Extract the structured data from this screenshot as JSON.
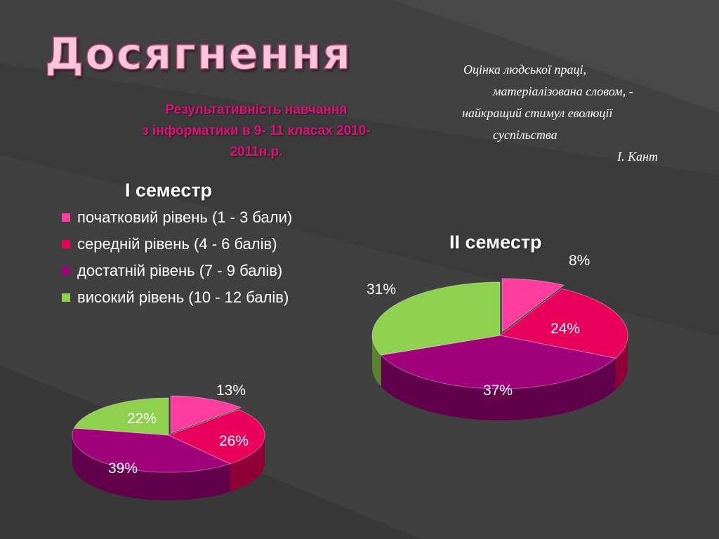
{
  "slide": {
    "title": "Досягнення",
    "subtitle_lines": [
      "Результативність навчання",
      "з інформатики в 9- 11 класах 2010-",
      "2011н.р."
    ]
  },
  "quote": {
    "lines": [
      "Оцінка людської праці,",
      "матеріалізована словом, -",
      "найкращий стимул еволюції",
      "суспільства",
      "І. Кант"
    ]
  },
  "colors": {
    "initial": "#ff3d9e",
    "middle": "#e8005a",
    "sufficient": "#a0007a",
    "high": "#8fd14f",
    "background": "#3a3a3a",
    "subtitle": "#e0107a"
  },
  "chart_data": [
    {
      "type": "pie",
      "title": "І семестр",
      "legend_placement": "left",
      "categories": [
        "початковий рівень (1 - 3 бали)",
        "середній рівень (4 - 6 балів)",
        "достатній рівень (7 - 9 балів)",
        "високий рівень (10 - 12 балів)"
      ],
      "values": [
        13,
        26,
        39,
        22
      ],
      "data_labels": [
        "13%",
        "26%",
        "39%",
        "22%"
      ]
    },
    {
      "type": "pie",
      "title": "ІІ семестр",
      "categories": [
        "початковий рівень (1 - 3 бали)",
        "середній рівень (4 - 6 балів)",
        "достатній рівень (7 - 9 балів)",
        "високий рівень (10 - 12 балів)"
      ],
      "values": [
        8,
        24,
        37,
        31
      ],
      "data_labels": [
        "8%",
        "24%",
        "37%",
        "31%"
      ]
    }
  ]
}
